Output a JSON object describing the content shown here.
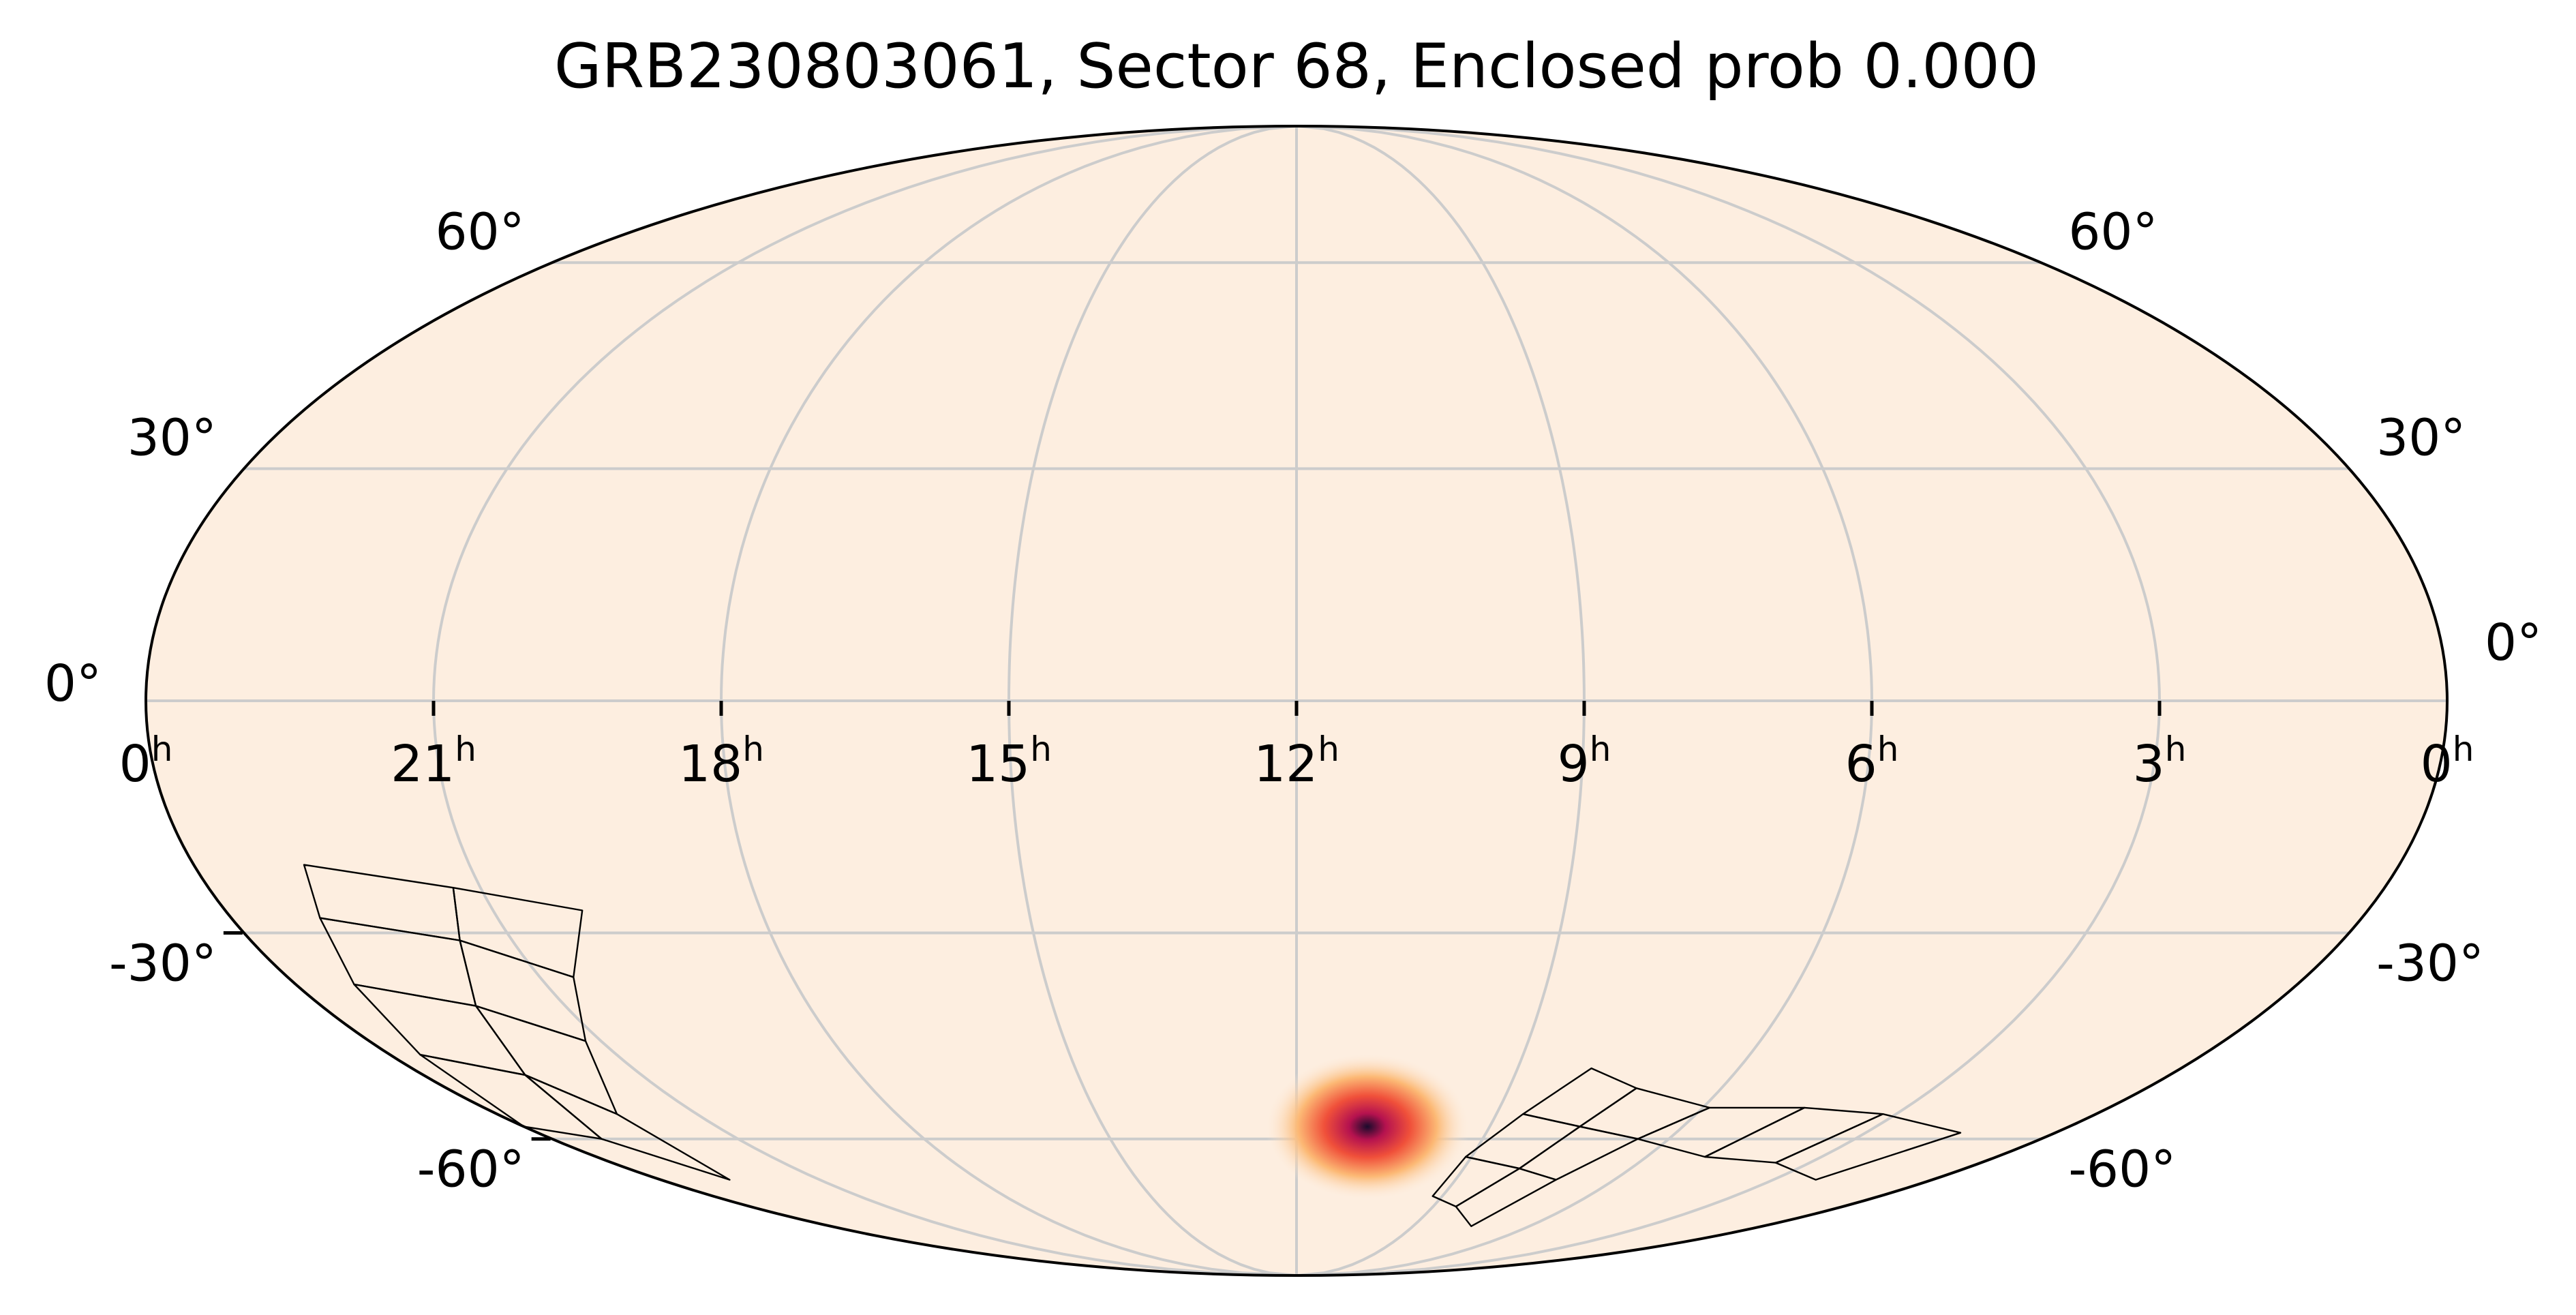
{
  "title": "GRB230803061, Sector 68, Enclosed prob 0.000",
  "map": {
    "projection": "mollweide",
    "background_color": "#fdeee0",
    "grid_color": "#cccccc",
    "grid": true,
    "ra_grid_hours": [
      3,
      6,
      9,
      12,
      15,
      18,
      21
    ],
    "dec_grid_degrees": [
      -60,
      -30,
      0,
      30,
      60
    ],
    "ra_labels": [
      {
        "hour": 24,
        "text": "0",
        "sup": "h"
      },
      {
        "hour": 21,
        "text": "21",
        "sup": "h"
      },
      {
        "hour": 18,
        "text": "18",
        "sup": "h"
      },
      {
        "hour": 15,
        "text": "15",
        "sup": "h"
      },
      {
        "hour": 12,
        "text": "12",
        "sup": "h"
      },
      {
        "hour": 9,
        "text": "9",
        "sup": "h"
      },
      {
        "hour": 6,
        "text": "6",
        "sup": "h"
      },
      {
        "hour": 3,
        "text": "3",
        "sup": "h"
      },
      {
        "hour": 0,
        "text": "0",
        "sup": "h"
      }
    ],
    "dec_labels": [
      {
        "deg": 60,
        "text": "60°"
      },
      {
        "deg": 30,
        "text": "30°"
      },
      {
        "deg": 0,
        "text": "0°"
      },
      {
        "deg": -30,
        "text": "-30°"
      },
      {
        "deg": -60,
        "text": "-60°"
      }
    ]
  },
  "probability_blob": {
    "ra_hours": 10.9,
    "dec_deg": -58,
    "colors": [
      "#fdeee0",
      "#fcb975",
      "#f0503a",
      "#b5124f",
      "#1a0b2c"
    ]
  },
  "tess_footprint": {
    "color": "#000000",
    "left_group_ra_dec": [
      [
        [
          22.8,
          -21
        ],
        [
          21.3,
          -24
        ],
        [
          21.6,
          -31
        ],
        [
          23.0,
          -28
        ]
      ],
      [
        [
          21.3,
          -24
        ],
        [
          20.0,
          -27
        ],
        [
          20.6,
          -36
        ],
        [
          21.6,
          -31
        ]
      ],
      [
        [
          23.0,
          -28
        ],
        [
          21.6,
          -31
        ],
        [
          22.1,
          -40
        ],
        [
          23.3,
          -37
        ]
      ],
      [
        [
          21.6,
          -31
        ],
        [
          20.6,
          -36
        ],
        [
          21.2,
          -45
        ],
        [
          22.1,
          -40
        ]
      ],
      [
        [
          23.3,
          -37
        ],
        [
          22.1,
          -40
        ],
        [
          22.6,
          -50
        ],
        [
          23.6,
          -47
        ]
      ],
      [
        [
          22.1,
          -40
        ],
        [
          21.2,
          -45
        ],
        [
          22.2,
          -56
        ],
        [
          22.6,
          -50
        ]
      ],
      [
        [
          23.6,
          -47
        ],
        [
          22.6,
          -50
        ],
        [
          23.2,
          -60
        ],
        [
          24.0,
          -58
        ]
      ],
      [
        [
          22.6,
          -50
        ],
        [
          22.2,
          -56
        ],
        [
          22.7,
          -67
        ],
        [
          23.2,
          -60
        ]
      ]
    ],
    "right_group_ra_dec": [
      [
        [
          8.0,
          -49
        ],
        [
          7.2,
          -52
        ],
        [
          7.6,
          -58
        ],
        [
          8.6,
          -56
        ]
      ],
      [
        [
          7.2,
          -52
        ],
        [
          5.9,
          -55
        ],
        [
          6.5,
          -60
        ],
        [
          7.6,
          -58
        ]
      ],
      [
        [
          8.6,
          -56
        ],
        [
          7.6,
          -58
        ],
        [
          8.0,
          -65
        ],
        [
          9.1,
          -63
        ]
      ],
      [
        [
          7.6,
          -58
        ],
        [
          6.5,
          -60
        ],
        [
          7.1,
          -67
        ],
        [
          8.0,
          -65
        ]
      ],
      [
        [
          9.1,
          -63
        ],
        [
          8.0,
          -65
        ],
        [
          8.5,
          -72
        ],
        [
          9.2,
          -70
        ]
      ],
      [
        [
          8.0,
          -65
        ],
        [
          7.1,
          -67
        ],
        [
          7.5,
          -76
        ],
        [
          8.5,
          -72
        ]
      ],
      [
        [
          5.9,
          -55
        ],
        [
          4.5,
          -55
        ],
        [
          5.0,
          -63
        ],
        [
          6.5,
          -60
        ]
      ],
      [
        [
          4.5,
          -55
        ],
        [
          3.2,
          -56
        ],
        [
          3.6,
          -64
        ],
        [
          5.0,
          -63
        ]
      ],
      [
        [
          3.2,
          -56
        ],
        [
          1.5,
          -59
        ],
        [
          2.2,
          -67
        ],
        [
          3.6,
          -64
        ]
      ]
    ]
  }
}
